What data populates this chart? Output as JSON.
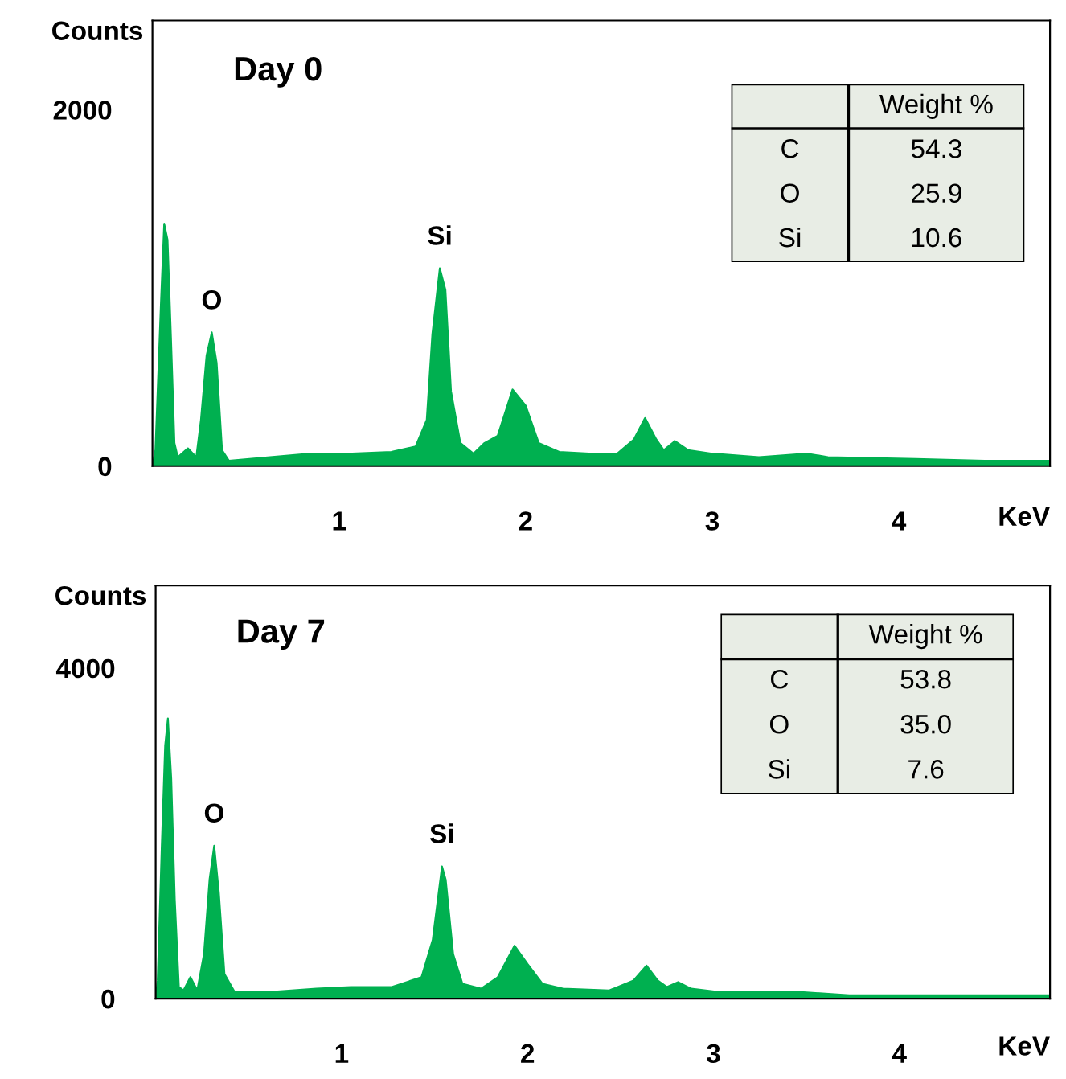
{
  "chart_data": [
    {
      "type": "area",
      "title": "Day 0",
      "ylabel": "Counts",
      "xlabel": "KeV",
      "color": "#00b050",
      "xlim": [
        0,
        4.81
      ],
      "ylim": [
        0,
        2500
      ],
      "xticks": [
        1,
        2,
        3,
        4
      ],
      "yticks": [
        0,
        2000
      ],
      "grid": false,
      "legend": false,
      "x": [
        0,
        0.016,
        0.045,
        0.063,
        0.081,
        0.1,
        0.118,
        0.136,
        0.19,
        0.235,
        0.26,
        0.29,
        0.318,
        0.344,
        0.373,
        0.41,
        0.63,
        0.85,
        1.07,
        1.28,
        1.41,
        1.47,
        1.5,
        1.54,
        1.57,
        1.6,
        1.65,
        1.72,
        1.78,
        1.85,
        1.93,
        2.0,
        2.07,
        2.18,
        2.34,
        2.49,
        2.58,
        2.64,
        2.7,
        2.74,
        2.8,
        2.87,
        3.0,
        3.25,
        3.51,
        3.62,
        4.09,
        4.46,
        4.81
      ],
      "values": [
        0,
        90,
        900,
        1360,
        1270,
        700,
        130,
        50,
        100,
        50,
        260,
        620,
        750,
        580,
        90,
        30,
        50,
        70,
        70,
        80,
        110,
        260,
        740,
        1110,
        990,
        420,
        130,
        70,
        130,
        170,
        430,
        340,
        130,
        80,
        70,
        70,
        150,
        270,
        150,
        90,
        140,
        90,
        70,
        50,
        70,
        50,
        40,
        30,
        30
      ],
      "annotations": [
        {
          "text": "O",
          "x": 0.318,
          "y": 750
        },
        {
          "text": "Si",
          "x": 1.54,
          "y": 1110
        }
      ]
    },
    {
      "type": "other",
      "title": "Weight %",
      "categories": [
        "C",
        "O",
        "Si"
      ],
      "values": [
        54.3,
        25.9,
        10.6
      ],
      "data_labels": true
    },
    {
      "type": "area",
      "title": "Day 7",
      "ylabel": "Counts",
      "xlabel": "KeV",
      "color": "#00b050",
      "xlim": [
        0,
        4.81
      ],
      "ylim": [
        0,
        5000
      ],
      "xticks": [
        1,
        2,
        3,
        4
      ],
      "yticks": [
        0,
        4000
      ],
      "grid": false,
      "legend": false,
      "x": [
        0,
        0.011,
        0.033,
        0.051,
        0.066,
        0.084,
        0.103,
        0.125,
        0.15,
        0.187,
        0.224,
        0.26,
        0.29,
        0.315,
        0.34,
        0.37,
        0.425,
        0.61,
        0.865,
        1.05,
        1.27,
        1.43,
        1.49,
        1.54,
        1.56,
        1.6,
        1.65,
        1.75,
        1.84,
        1.93,
        2.0,
        2.08,
        2.19,
        2.44,
        2.57,
        2.64,
        2.7,
        2.75,
        2.81,
        2.88,
        3.03,
        3.47,
        3.73,
        4.28,
        4.81
      ],
      "values": [
        0,
        220,
        1850,
        3060,
        3390,
        2660,
        1200,
        140,
        100,
        260,
        100,
        540,
        1440,
        1850,
        1280,
        300,
        80,
        80,
        120,
        140,
        140,
        260,
        710,
        1600,
        1440,
        540,
        180,
        120,
        260,
        640,
        420,
        180,
        120,
        100,
        220,
        400,
        220,
        140,
        200,
        120,
        80,
        80,
        40,
        40,
        40
      ],
      "annotations": [
        {
          "text": "O",
          "x": 0.315,
          "y": 1850
        },
        {
          "text": "Si",
          "x": 1.54,
          "y": 1600
        }
      ]
    },
    {
      "type": "other",
      "title": "Weight %",
      "categories": [
        "C",
        "O",
        "Si"
      ],
      "values": [
        53.8,
        35.0,
        7.6
      ],
      "value_labels": [
        "53.8",
        "35.0",
        "7.6"
      ]
    }
  ]
}
